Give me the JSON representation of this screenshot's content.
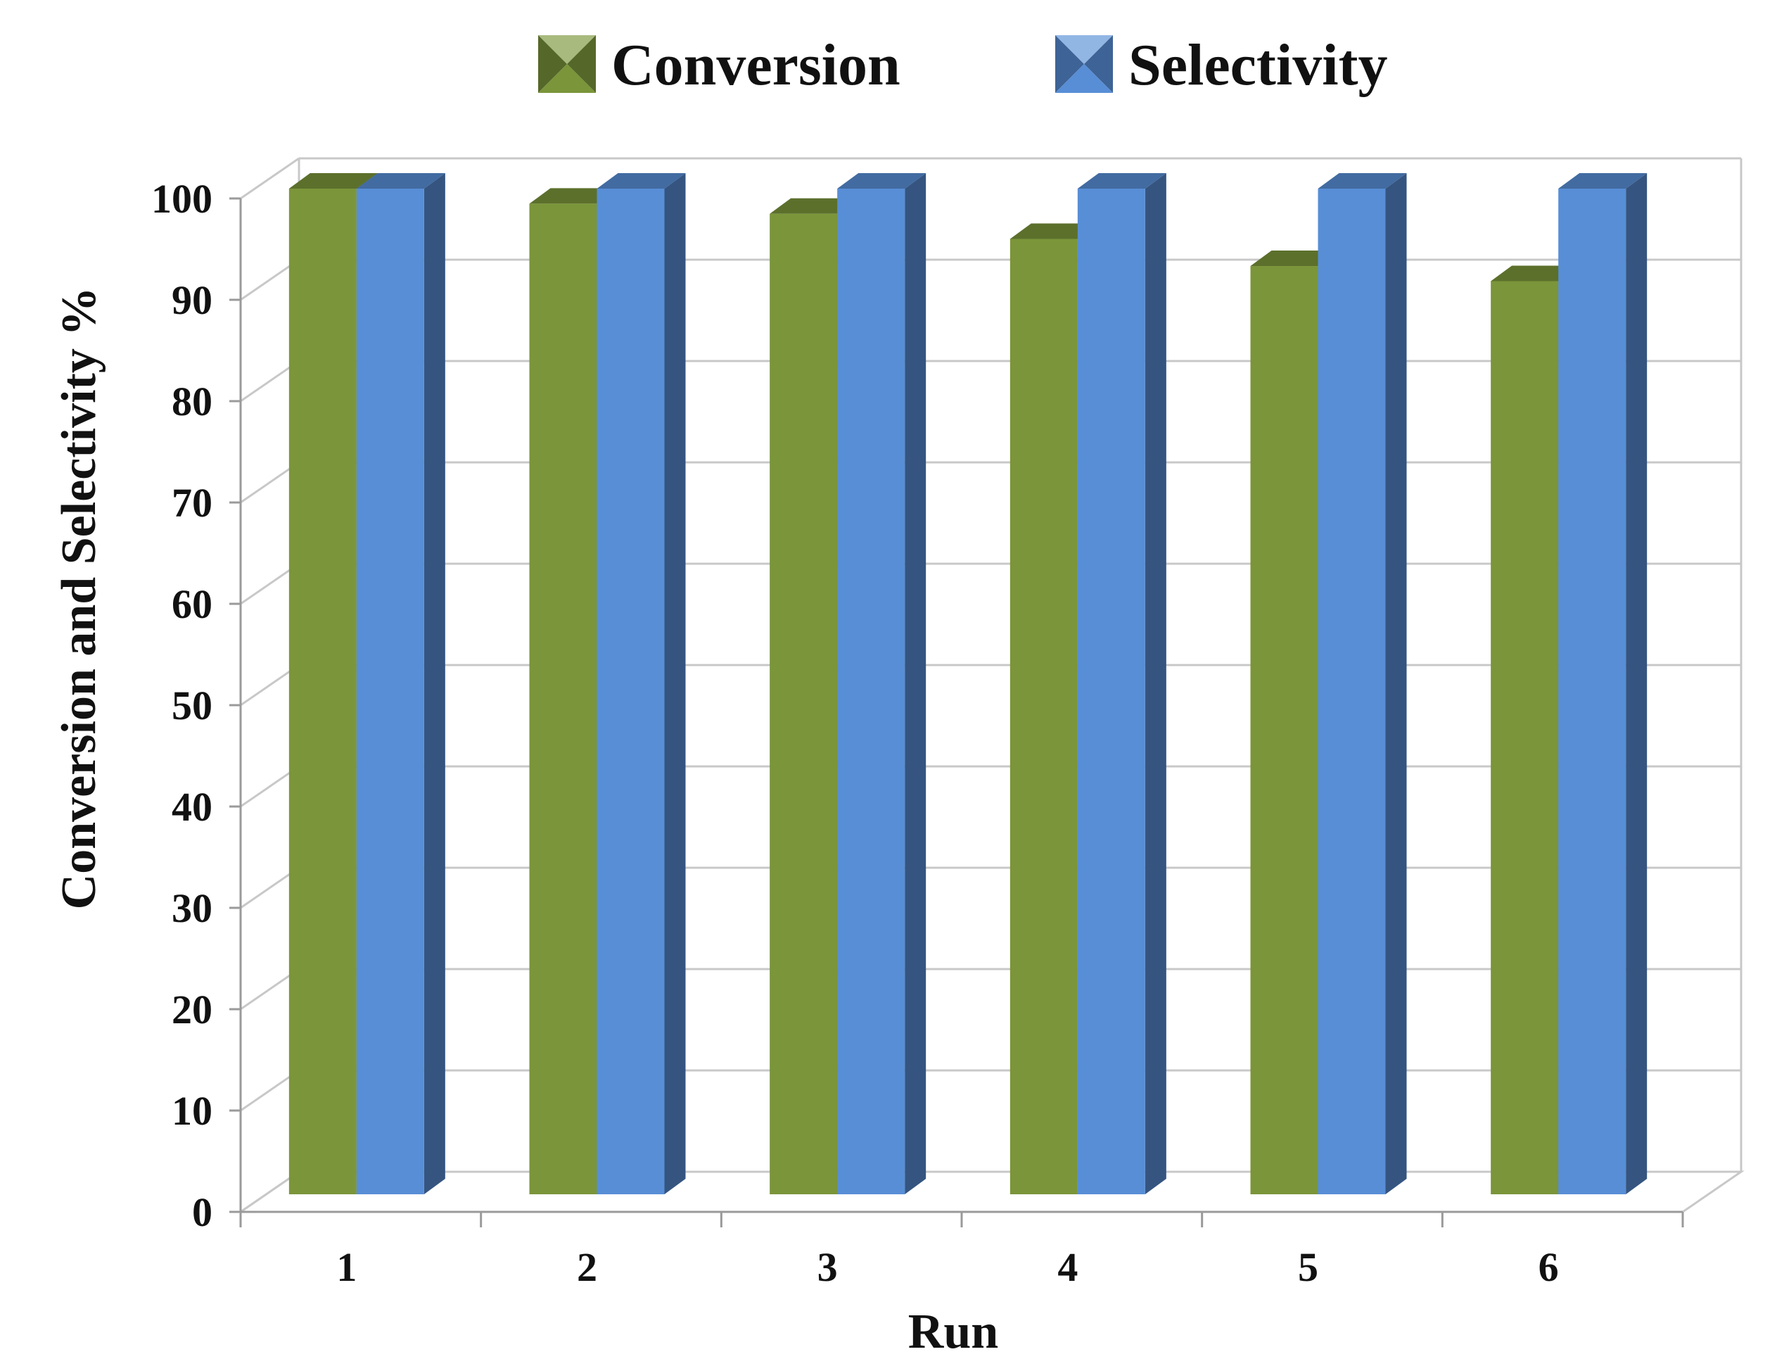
{
  "chart_data": {
    "type": "bar",
    "style": "3d-clustered-column",
    "categories": [
      "1",
      "2",
      "3",
      "4",
      "5",
      "6"
    ],
    "series": [
      {
        "name": "Conversion",
        "values": [
          100,
          98.5,
          97.5,
          95,
          92.3,
          90.8
        ],
        "color": "#7b953a"
      },
      {
        "name": "Selectivity",
        "values": [
          100,
          100,
          100,
          100,
          100,
          100
        ],
        "color": "#588ed6"
      }
    ],
    "title": "",
    "xlabel": "Run",
    "ylabel": "Conversion  and Selectivity %",
    "ylim": [
      0,
      100
    ],
    "yticks": [
      0,
      10,
      20,
      30,
      40,
      50,
      60,
      70,
      80,
      90,
      100
    ],
    "grid": true,
    "legend_position": "top-center"
  }
}
